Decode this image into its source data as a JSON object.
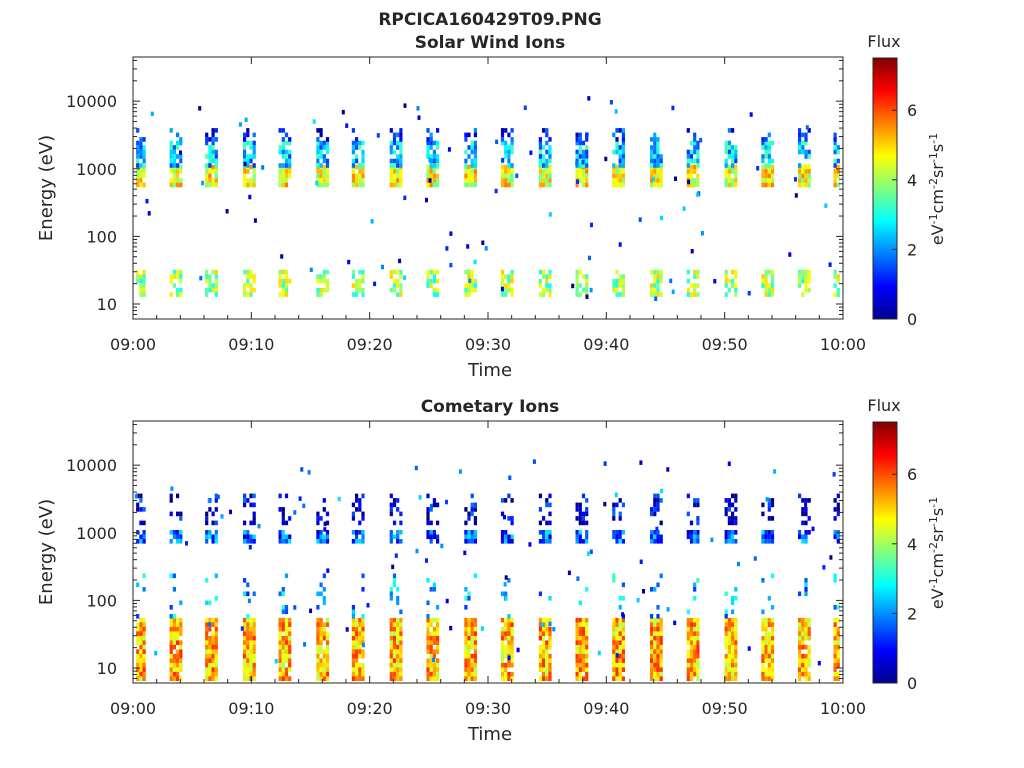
{
  "figure": {
    "filename": "RPCICA160429T09.PNG"
  },
  "colorbar": {
    "label": "Flux",
    "unit_parts": [
      "eV",
      "-1",
      "cm",
      "-2",
      "sr",
      "-1",
      "s",
      "-1"
    ],
    "ticks": [
      "0",
      "2",
      "4",
      "6"
    ],
    "range": [
      0,
      7.5
    ],
    "colormap": "jet"
  },
  "chart_data": [
    {
      "type": "heatmap",
      "title": "Solar Wind Ions",
      "xlabel": "Time",
      "ylabel": "Energy (eV)",
      "x_ticks": [
        "09:00",
        "09:10",
        "09:20",
        "09:30",
        "09:40",
        "09:50",
        "10:00"
      ],
      "x_range_minutes": [
        0,
        60
      ],
      "y_ticks": [
        "10",
        "100",
        "1000",
        "10000"
      ],
      "y_range": [
        6,
        45000
      ],
      "y_scale": "log",
      "sweep_minutes": [
        0.5,
        3.6,
        6.6,
        9.8,
        12.8,
        16.0,
        19.0,
        22.2,
        25.3,
        28.5,
        31.6,
        34.8,
        37.9,
        41.0,
        44.2,
        47.3,
        50.5,
        53.6,
        56.7,
        59.7
      ],
      "bands": [
        {
          "emin": 550,
          "emax": 1150,
          "flux": 4.6,
          "density": 0.95
        },
        {
          "emin": 1150,
          "emax": 2600,
          "flux": 2.4,
          "density": 0.75
        },
        {
          "emin": 2600,
          "emax": 4000,
          "flux": 1.2,
          "density": 0.35
        },
        {
          "emin": 13,
          "emax": 32,
          "flux": 4.0,
          "density": 0.7
        }
      ]
    },
    {
      "type": "heatmap",
      "title": "Cometary Ions",
      "xlabel": "Time",
      "ylabel": "Energy (eV)",
      "x_ticks": [
        "09:00",
        "09:10",
        "09:20",
        "09:30",
        "09:40",
        "09:50",
        "10:00"
      ],
      "x_range_minutes": [
        0,
        60
      ],
      "y_ticks": [
        "10",
        "100",
        "1000",
        "10000"
      ],
      "y_range": [
        6,
        45000
      ],
      "y_scale": "log",
      "sweep_minutes": [
        0.5,
        3.6,
        6.6,
        9.8,
        12.8,
        16.0,
        19.0,
        22.2,
        25.3,
        28.5,
        31.6,
        34.8,
        37.9,
        41.0,
        44.2,
        47.3,
        50.5,
        53.6,
        56.7,
        59.7
      ],
      "bands": [
        {
          "emin": 700,
          "emax": 1100,
          "flux": 1.6,
          "density": 0.85
        },
        {
          "emin": 1300,
          "emax": 3800,
          "flux": 0.7,
          "density": 0.35
        },
        {
          "emin": 7,
          "emax": 55,
          "flux": 5.2,
          "density": 0.95
        },
        {
          "emin": 55,
          "emax": 250,
          "flux": 2.2,
          "density": 0.15
        }
      ]
    }
  ]
}
